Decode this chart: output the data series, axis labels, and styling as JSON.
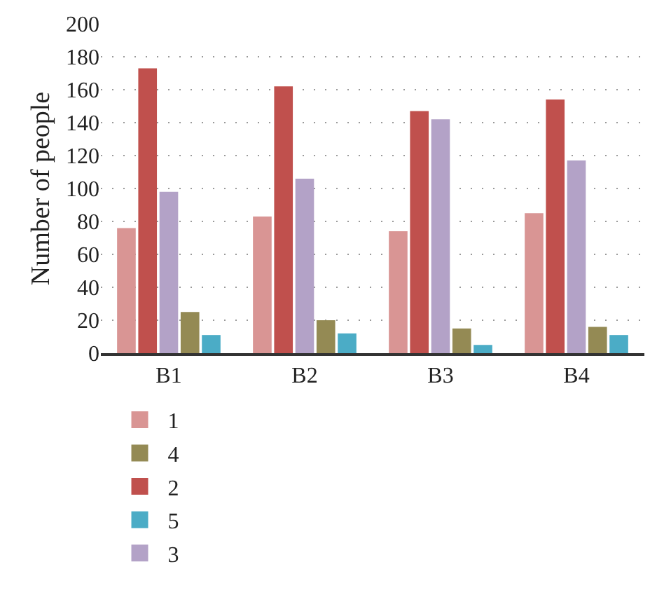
{
  "chart_data": {
    "type": "bar",
    "ylabel": "Number of people",
    "categories": [
      "B1",
      "B2",
      "B3",
      "B4"
    ],
    "series": [
      {
        "name": "1",
        "color": "#d99594",
        "values": [
          76,
          83,
          74,
          85
        ]
      },
      {
        "name": "2",
        "color": "#c0504d",
        "values": [
          173,
          162,
          147,
          154
        ]
      },
      {
        "name": "3",
        "color": "#b3a2c7",
        "values": [
          98,
          106,
          142,
          117
        ]
      },
      {
        "name": "4",
        "color": "#948a54",
        "values": [
          25,
          20,
          15,
          16
        ]
      },
      {
        "name": "5",
        "color": "#4bacc6",
        "values": [
          11,
          12,
          5,
          11
        ]
      }
    ],
    "ylim": [
      0,
      200
    ],
    "yticks": [
      0,
      20,
      40,
      60,
      80,
      100,
      120,
      140,
      160,
      180,
      200
    ],
    "grid": "y",
    "legend": "bottom"
  }
}
